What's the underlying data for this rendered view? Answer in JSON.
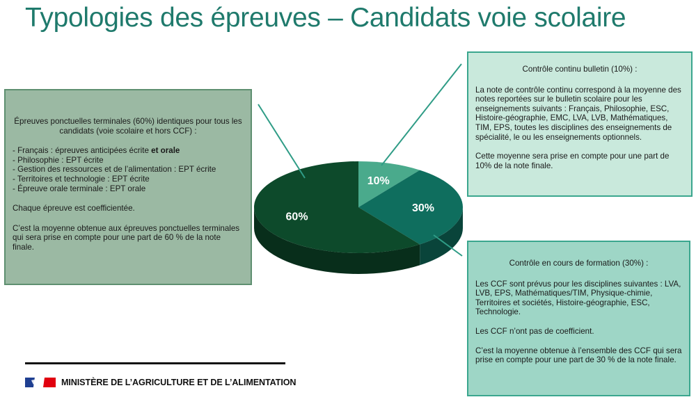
{
  "slide": {
    "title": "Typologies des épreuves – Candidats voie scolaire"
  },
  "left_box": {
    "heading": "Épreuves ponctuelles terminales (60%) identiques pour tous les candidats (voie scolaire et hors CCF) :",
    "items": [
      "- Français : épreuves anticipées écrite",
      "- Philosophie : EPT écrite",
      "- Gestion des ressources et de l’alimentation : EPT écrite",
      "- Territoires et technologie : EPT écrite",
      "- Épreuve orale terminale : EPT orale"
    ],
    "item0_bold": "et orale",
    "para1": "Chaque épreuve est coefficientée.",
    "para2": "C’est la moyenne obtenue aux épreuves ponctuelles terminales qui sera prise en compte pour une part de 60 % de la note finale."
  },
  "top_box": {
    "heading": "Contrôle continu bulletin (10%) :",
    "para1": "La note de contrôle continu correspond à la moyenne des notes reportées sur le bulletin scolaire pour les enseignements suivants : Français, Philosophie, ESC, Histoire-géographie, EMC, LVA, LVB, Mathématiques, TIM, EPS, toutes les disciplines des enseignements de spécialité, le ou les enseignements optionnels.",
    "para2": "Cette moyenne sera prise en compte pour une part de 10% de la note finale."
  },
  "bottom_box": {
    "heading": "Contrôle en cours de formation (30%) :",
    "para1": "Les CCF sont prévus pour les disciplines suivantes : LVA, LVB, EPS, Mathématiques/TIM, Physique-chimie, Territoires et sociétés, Histoire-géographie, ESC, Technologie.",
    "para2": "Les CCF n’ont pas de coefficient.",
    "para3": "C’est la moyenne obtenue à l’ensemble des CCF qui sera prise en compte pour une part de 30 % de la note finale."
  },
  "chart_data": {
    "type": "pie",
    "slices": [
      {
        "label": "10%",
        "value": 10,
        "color": "#4aaa8c"
      },
      {
        "label": "30%",
        "value": 30,
        "color": "#0f6e5e"
      },
      {
        "label": "60%",
        "value": 60,
        "color": "#0d4a2b"
      }
    ]
  },
  "footer": {
    "ministry": "MINISTÈRE DE L’AGRICULTURE ET DE L’ALIMENTATION"
  },
  "colors": {
    "title": "#1f7a6c",
    "left_box_bg": "#9bb9a3",
    "top_box_bg": "#c9e9dc",
    "bottom_box_bg": "#9ed6c6",
    "connector": "#2f9c86"
  }
}
